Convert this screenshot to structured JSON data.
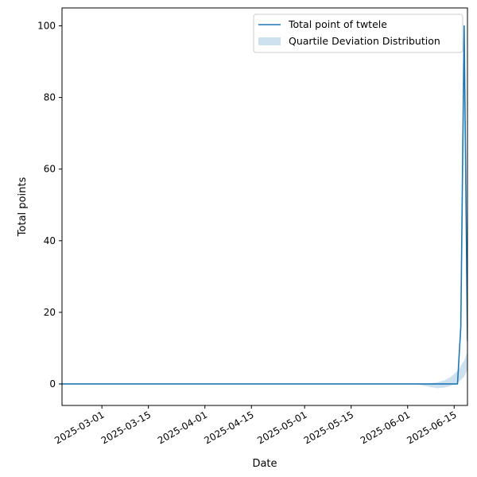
{
  "chart_data": {
    "type": "line",
    "xlabel": "Date",
    "ylabel": "Total points",
    "x_axis_type": "date",
    "xlim": [
      "2025-02-17",
      "2025-06-19"
    ],
    "ylim": [
      -6,
      105
    ],
    "x_ticks": [
      "2025-03-01",
      "2025-03-15",
      "2025-04-01",
      "2025-04-15",
      "2025-05-01",
      "2025-05-15",
      "2025-06-01",
      "2025-06-15"
    ],
    "y_ticks": [
      0,
      20,
      40,
      60,
      80,
      100
    ],
    "grid": false,
    "legend_position": "top-right",
    "series": [
      {
        "name": "Total point of twtele",
        "type": "line",
        "color": "#1f77b4",
        "x": [
          "2025-02-17",
          "2025-06-16",
          "2025-06-17",
          "2025-06-18",
          "2025-06-19"
        ],
        "y": [
          0,
          0,
          16,
          100,
          12
        ]
      },
      {
        "name": "Quartile Deviation Distribution",
        "type": "band",
        "color": "#1f77b4",
        "opacity": 0.22,
        "x": [
          "2025-06-02",
          "2025-06-05",
          "2025-06-08",
          "2025-06-10",
          "2025-06-12",
          "2025-06-14",
          "2025-06-16",
          "2025-06-18",
          "2025-06-19"
        ],
        "upper": [
          0,
          0.05,
          0.2,
          0.5,
          1.0,
          2.0,
          3.6,
          6.5,
          9.0
        ],
        "lower": [
          0,
          -0.3,
          -0.9,
          -1.2,
          -1.0,
          -0.5,
          0.3,
          2.0,
          4.0
        ]
      }
    ]
  }
}
